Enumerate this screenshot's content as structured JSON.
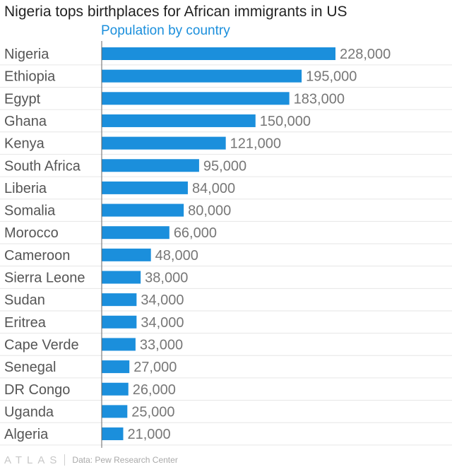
{
  "title": "Nigeria tops birthplaces for African immigrants in US",
  "subtitle": "Population by country",
  "colors": {
    "bar": "#1b8fdc",
    "subtitle": "#1b8fdc",
    "grid": "#e6e6e6",
    "axis": "#666666"
  },
  "chart_data": {
    "type": "bar",
    "orientation": "horizontal",
    "categories": [
      "Nigeria",
      "Ethiopia",
      "Egypt",
      "Ghana",
      "Kenya",
      "South Africa",
      "Liberia",
      "Somalia",
      "Morocco",
      "Cameroon",
      "Sierra Leone",
      "Sudan",
      "Eritrea",
      "Cape Verde",
      "Senegal",
      "DR Congo",
      "Uganda",
      "Algeria"
    ],
    "values": [
      228000,
      195000,
      183000,
      150000,
      121000,
      95000,
      84000,
      80000,
      66000,
      48000,
      38000,
      34000,
      34000,
      33000,
      27000,
      26000,
      25000,
      21000
    ],
    "value_labels": [
      "228,000",
      "195,000",
      "183,000",
      "150,000",
      "121,000",
      "95,000",
      "84,000",
      "80,000",
      "66,000",
      "48,000",
      "38,000",
      "34,000",
      "34,000",
      "33,000",
      "27,000",
      "26,000",
      "25,000",
      "21,000"
    ],
    "xlim": [
      0,
      228000
    ],
    "grid": true,
    "legend": "none"
  },
  "footer": {
    "brand": "ATLAS",
    "source": "Data: Pew Research Center"
  }
}
